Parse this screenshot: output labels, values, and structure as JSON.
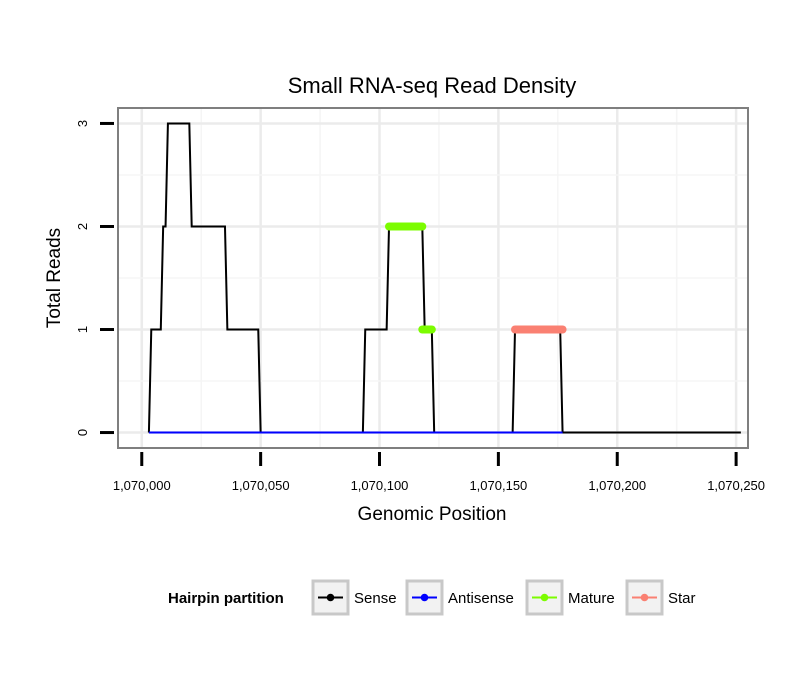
{
  "chart_data": {
    "type": "line",
    "title": "Small RNA-seq Read Density",
    "xlabel": "Genomic Position",
    "ylabel": "Total Reads",
    "xlim": [
      1069990,
      1070255
    ],
    "ylim": [
      -0.15,
      3.15
    ],
    "x_ticks": [
      1070000,
      1070050,
      1070100,
      1070150,
      1070200,
      1070250
    ],
    "x_tick_labels": [
      "1,070,000",
      "1,070,050",
      "1,070,100",
      "1,070,150",
      "1,070,200",
      "1,070,250"
    ],
    "y_ticks": [
      0,
      1,
      2,
      3
    ],
    "y_tick_labels": [
      "0",
      "1",
      "2",
      "3"
    ],
    "grid": true,
    "legend": {
      "title": "Hairpin partition",
      "position": "bottom",
      "items": [
        {
          "label": "Sense",
          "color": "#000000"
        },
        {
          "label": "Antisense",
          "color": "#0000ff"
        },
        {
          "label": "Mature",
          "color": "#7cfc00"
        },
        {
          "label": "Star",
          "color": "#fa8072"
        }
      ]
    },
    "series": [
      {
        "name": "Sense",
        "color": "#000000",
        "points": [
          [
            1070003,
            0
          ],
          [
            1070004,
            1
          ],
          [
            1070008,
            1
          ],
          [
            1070009,
            2
          ],
          [
            1070010,
            2
          ],
          [
            1070011,
            3
          ],
          [
            1070020,
            3
          ],
          [
            1070021,
            2
          ],
          [
            1070035,
            2
          ],
          [
            1070036,
            1
          ],
          [
            1070049,
            1
          ],
          [
            1070050,
            0
          ],
          [
            1070093,
            0
          ],
          [
            1070094,
            1
          ],
          [
            1070103,
            1
          ],
          [
            1070104,
            2
          ],
          [
            1070118,
            2
          ],
          [
            1070119,
            1
          ],
          [
            1070122,
            1
          ],
          [
            1070123,
            0
          ],
          [
            1070156,
            0
          ],
          [
            1070157,
            1
          ],
          [
            1070176,
            1
          ],
          [
            1070177,
            0
          ],
          [
            1070252,
            0
          ]
        ]
      },
      {
        "name": "Antisense",
        "color": "#0000ff",
        "points": [
          [
            1070003,
            0
          ],
          [
            1070177,
            0
          ]
        ]
      },
      {
        "name": "Mature",
        "color": "#7cfc00",
        "segments": [
          {
            "x": [
              1070104,
              1070118
            ],
            "y": 2
          },
          {
            "x": [
              1070118,
              1070122
            ],
            "y": 1
          }
        ]
      },
      {
        "name": "Star",
        "color": "#fa8072",
        "segments": [
          {
            "x": [
              1070157,
              1070177
            ],
            "y": 1
          }
        ]
      }
    ]
  }
}
